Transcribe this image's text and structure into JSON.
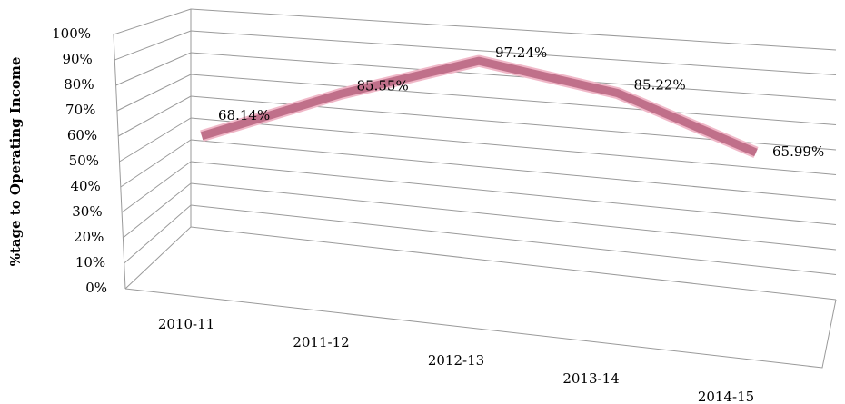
{
  "chart_data": {
    "type": "line3d",
    "y_axis_label": "%tage to Operating Income",
    "categories": [
      "2010-11",
      "2011-12",
      "2012-13",
      "2013-14",
      "2014-15"
    ],
    "series": [
      {
        "name": "%tage to Operating Income",
        "color": "#c0708a",
        "values": [
          68.14,
          85.55,
          97.24,
          85.22,
          65.99
        ],
        "value_labels": [
          "68.14%",
          "85.55%",
          "97.24%",
          "85.22%",
          "65.99%"
        ]
      }
    ],
    "ylim": [
      0,
      100
    ],
    "yticks": [
      {
        "value": 0,
        "label": "0%"
      },
      {
        "value": 10,
        "label": "10%"
      },
      {
        "value": 20,
        "label": "20%"
      },
      {
        "value": 30,
        "label": "30%"
      },
      {
        "value": 40,
        "label": "40%"
      },
      {
        "value": 50,
        "label": "50%"
      },
      {
        "value": 60,
        "label": "60%"
      },
      {
        "value": 70,
        "label": "70%"
      },
      {
        "value": 80,
        "label": "80%"
      },
      {
        "value": 90,
        "label": "90%"
      },
      {
        "value": 100,
        "label": "100%"
      }
    ],
    "grid": true
  }
}
